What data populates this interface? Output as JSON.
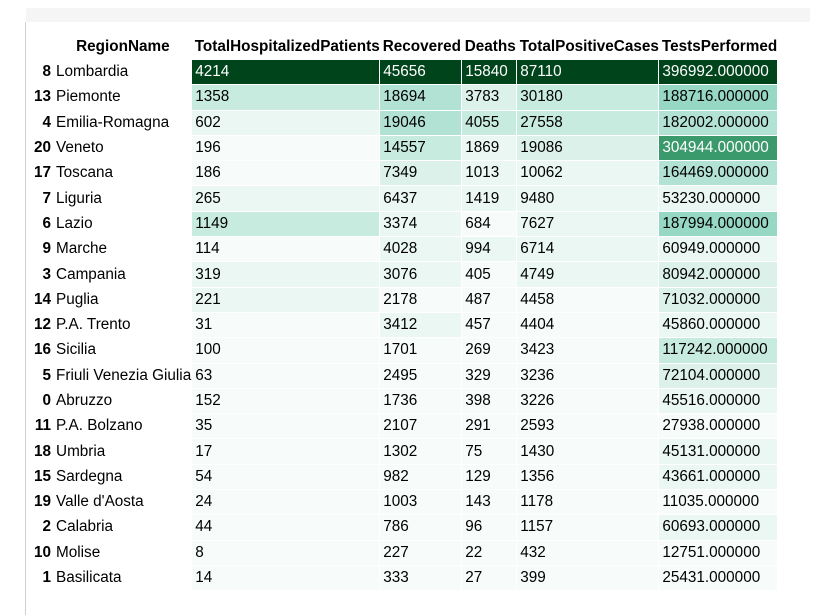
{
  "table": {
    "headers": {
      "index": "",
      "region": "RegionName",
      "hospitalized": "TotalHospitalizedPatients",
      "recovered": "Recovered",
      "deaths": "Deaths",
      "positive": "TotalPositiveCases",
      "tests": "TestsPerformed"
    },
    "colors": {
      "scale": [
        "#f7fcfa",
        "#eaf7f2",
        "#dbf1e9",
        "#c8ebdf",
        "#b2e2d3",
        "#96d8c3",
        "#7acbae",
        "#59b890",
        "#3a9a6b",
        "#1c7a45",
        "#00441b"
      ],
      "text_dark": "#000000",
      "text_light": "#ffffff"
    },
    "rows": [
      {
        "idx": "8",
        "name": "Lombardia",
        "hosp": "4214",
        "rec": "45656",
        "deaths": "15840",
        "pos": "87110",
        "tests": "396992.000000"
      },
      {
        "idx": "13",
        "name": "Piemonte",
        "hosp": "1358",
        "rec": "18694",
        "deaths": "3783",
        "pos": "30180",
        "tests": "188716.000000"
      },
      {
        "idx": "4",
        "name": "Emilia-Romagna",
        "hosp": "602",
        "rec": "19046",
        "deaths": "4055",
        "pos": "27558",
        "tests": "182002.000000"
      },
      {
        "idx": "20",
        "name": "Veneto",
        "hosp": "196",
        "rec": "14557",
        "deaths": "1869",
        "pos": "19086",
        "tests": "304944.000000"
      },
      {
        "idx": "17",
        "name": "Toscana",
        "hosp": "186",
        "rec": "7349",
        "deaths": "1013",
        "pos": "10062",
        "tests": "164469.000000"
      },
      {
        "idx": "7",
        "name": "Liguria",
        "hosp": "265",
        "rec": "6437",
        "deaths": "1419",
        "pos": "9480",
        "tests": "53230.000000"
      },
      {
        "idx": "6",
        "name": "Lazio",
        "hosp": "1149",
        "rec": "3374",
        "deaths": "684",
        "pos": "7627",
        "tests": "187994.000000"
      },
      {
        "idx": "9",
        "name": "Marche",
        "hosp": "114",
        "rec": "4028",
        "deaths": "994",
        "pos": "6714",
        "tests": "60949.000000"
      },
      {
        "idx": "3",
        "name": "Campania",
        "hosp": "319",
        "rec": "3076",
        "deaths": "405",
        "pos": "4749",
        "tests": "80942.000000"
      },
      {
        "idx": "14",
        "name": "Puglia",
        "hosp": "221",
        "rec": "2178",
        "deaths": "487",
        "pos": "4458",
        "tests": "71032.000000"
      },
      {
        "idx": "12",
        "name": "P.A. Trento",
        "hosp": "31",
        "rec": "3412",
        "deaths": "457",
        "pos": "4404",
        "tests": "45860.000000"
      },
      {
        "idx": "16",
        "name": "Sicilia",
        "hosp": "100",
        "rec": "1701",
        "deaths": "269",
        "pos": "3423",
        "tests": "117242.000000"
      },
      {
        "idx": "5",
        "name": "Friuli Venezia Giulia",
        "hosp": "63",
        "rec": "2495",
        "deaths": "329",
        "pos": "3236",
        "tests": "72104.000000"
      },
      {
        "idx": "0",
        "name": "Abruzzo",
        "hosp": "152",
        "rec": "1736",
        "deaths": "398",
        "pos": "3226",
        "tests": "45516.000000"
      },
      {
        "idx": "11",
        "name": "P.A. Bolzano",
        "hosp": "35",
        "rec": "2107",
        "deaths": "291",
        "pos": "2593",
        "tests": "27938.000000"
      },
      {
        "idx": "18",
        "name": "Umbria",
        "hosp": "17",
        "rec": "1302",
        "deaths": "75",
        "pos": "1430",
        "tests": "45131.000000"
      },
      {
        "idx": "15",
        "name": "Sardegna",
        "hosp": "54",
        "rec": "982",
        "deaths": "129",
        "pos": "1356",
        "tests": "43661.000000"
      },
      {
        "idx": "19",
        "name": "Valle d'Aosta",
        "hosp": "24",
        "rec": "1003",
        "deaths": "143",
        "pos": "1178",
        "tests": "11035.000000"
      },
      {
        "idx": "2",
        "name": "Calabria",
        "hosp": "44",
        "rec": "786",
        "deaths": "96",
        "pos": "1157",
        "tests": "60693.000000"
      },
      {
        "idx": "10",
        "name": "Molise",
        "hosp": "8",
        "rec": "227",
        "deaths": "22",
        "pos": "432",
        "tests": "12751.000000"
      },
      {
        "idx": "1",
        "name": "Basilicata",
        "hosp": "14",
        "rec": "333",
        "deaths": "27",
        "pos": "399",
        "tests": "25431.000000"
      }
    ]
  }
}
